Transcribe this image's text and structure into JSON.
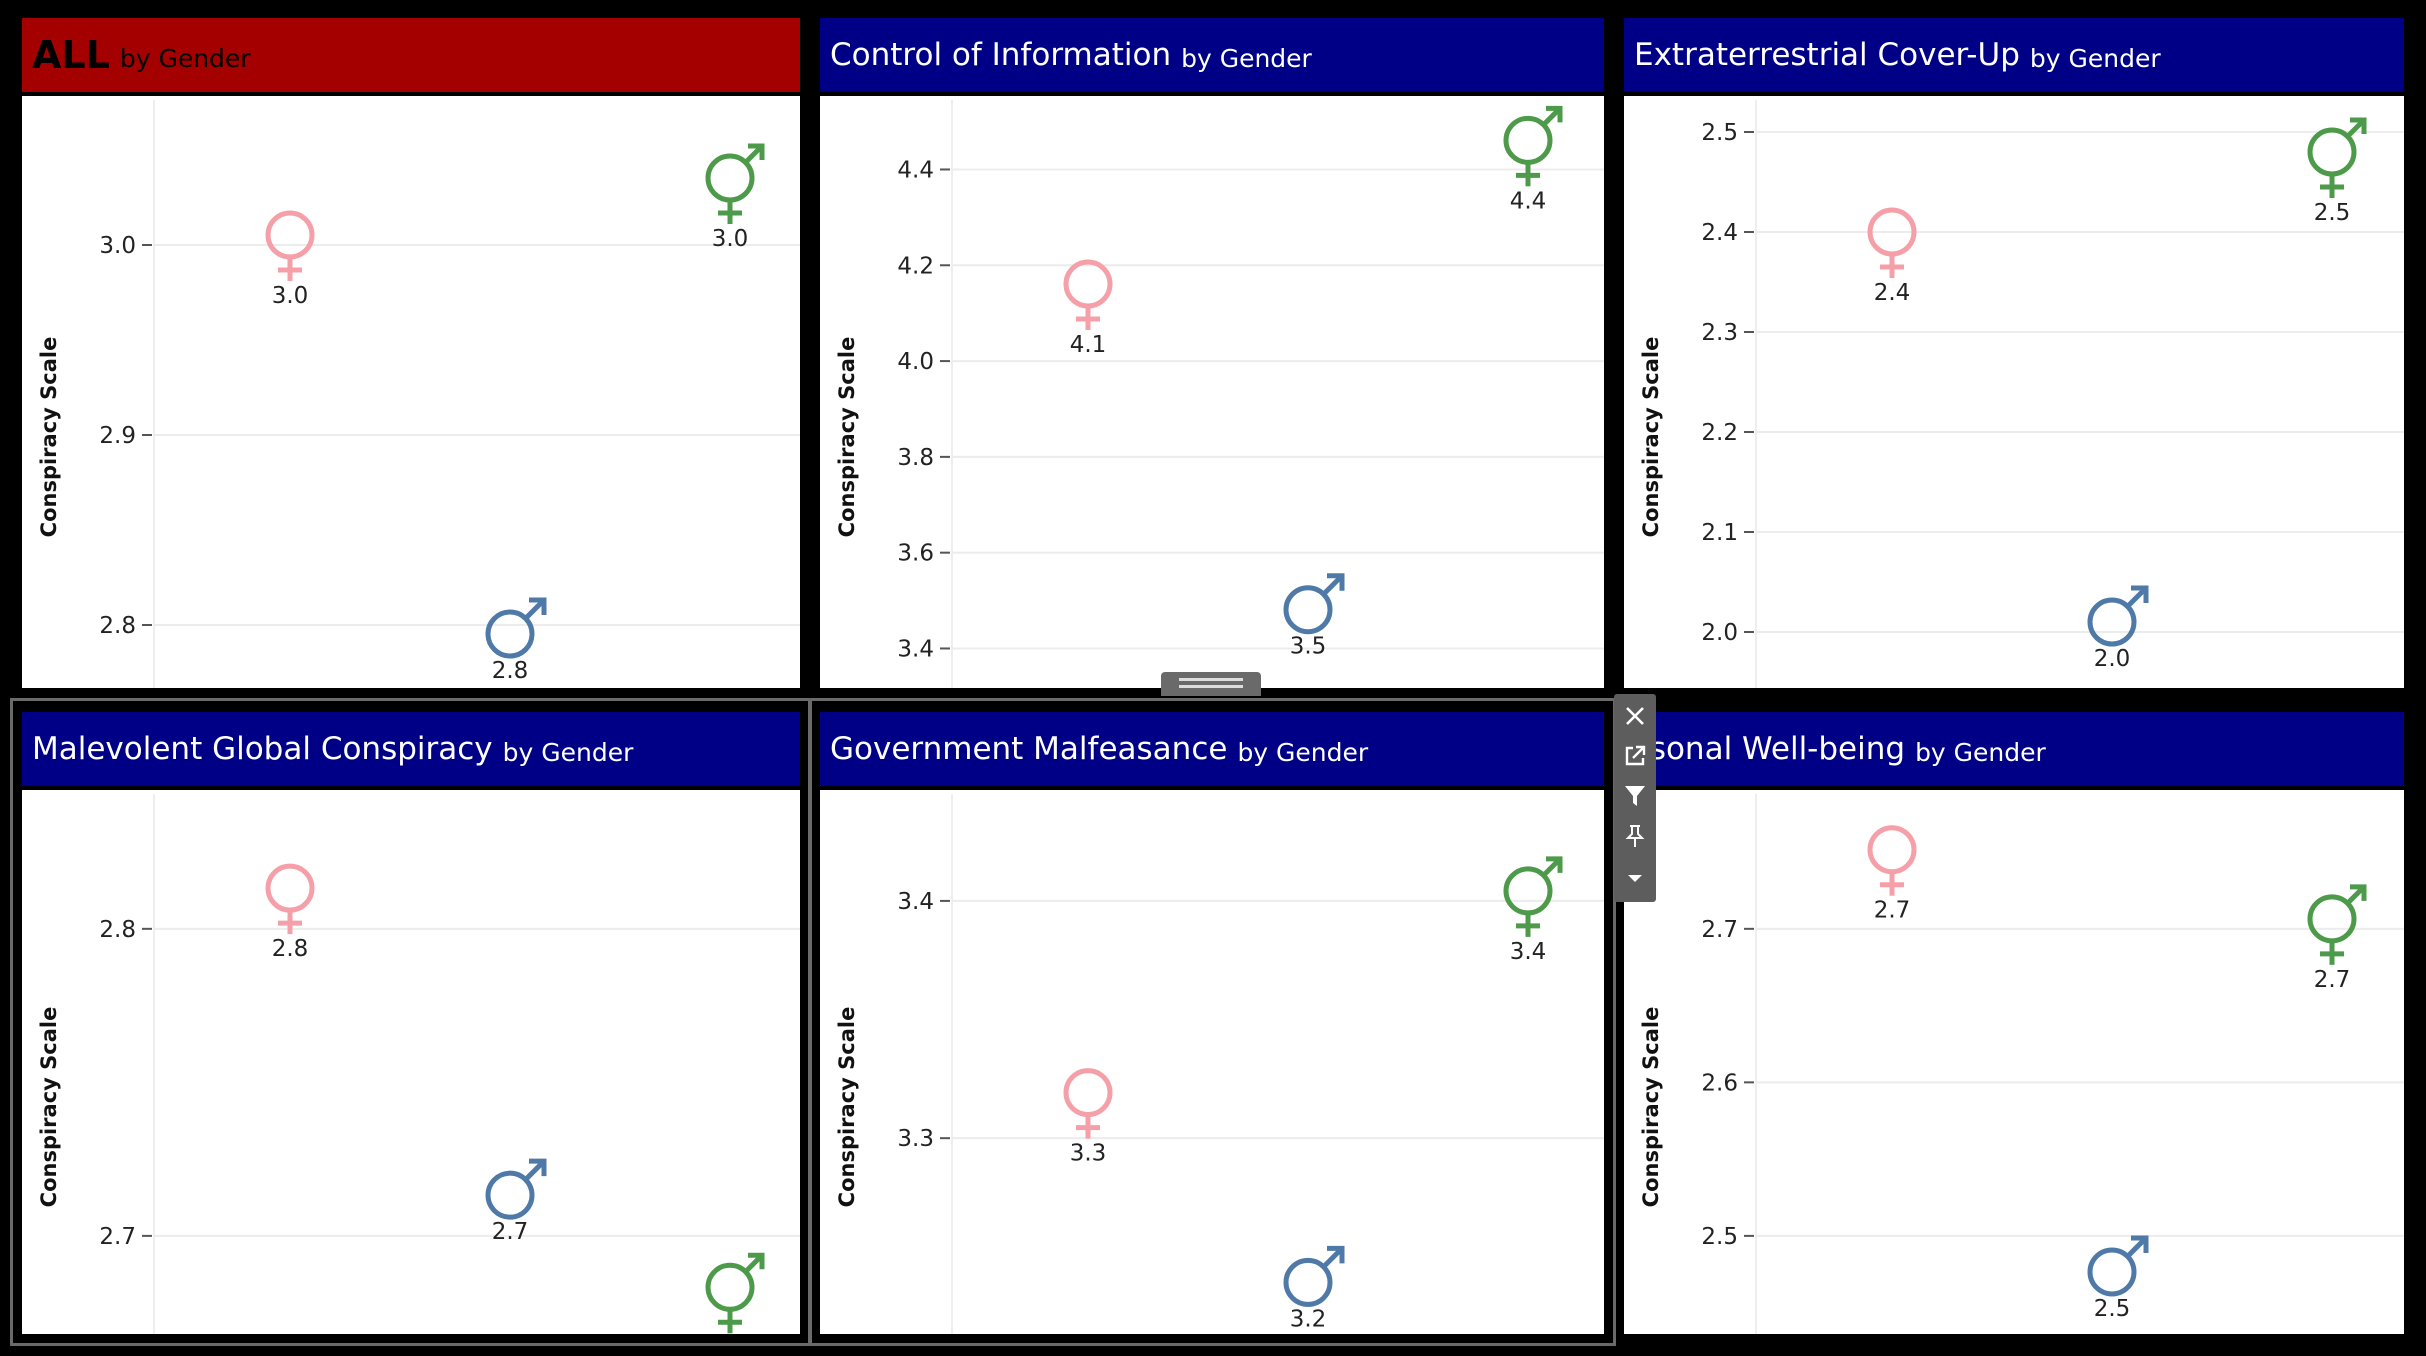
{
  "colors": {
    "female": "#f5a0a8",
    "male": "#4f7aa8",
    "other": "#4d9a4a",
    "header_all": "#a50000",
    "header": "#000087"
  },
  "axis_title": "Conspiracy Scale",
  "panels": [
    {
      "title": "ALL",
      "subtitle": "by Gender",
      "ticks": [
        "3.0",
        "2.9",
        "2.8"
      ],
      "labels": {
        "female": "3.0",
        "male": "2.8",
        "other": "3.0"
      }
    },
    {
      "title": "Control of Information",
      "subtitle": "by Gender",
      "ticks": [
        "4.4",
        "4.2",
        "4.0",
        "3.8",
        "3.6",
        "3.4"
      ],
      "labels": {
        "female": "4.1",
        "male": "3.5",
        "other": "4.4"
      }
    },
    {
      "title": "Extraterrestrial Cover-Up",
      "subtitle": "by Gender",
      "ticks": [
        "2.5",
        "2.4",
        "2.3",
        "2.2",
        "2.1",
        "2.0"
      ],
      "labels": {
        "female": "2.4",
        "male": "2.0",
        "other": "2.5"
      }
    },
    {
      "title": "Malevolent Global Conspiracy",
      "subtitle": "by Gender",
      "ticks": [
        "2.8",
        "2.7"
      ],
      "labels": {
        "female": "2.8",
        "male": "2.7",
        "other": "2.7"
      }
    },
    {
      "title": "Government Malfeasance",
      "subtitle": "by Gender",
      "ticks": [
        "3.4",
        "3.3"
      ],
      "labels": {
        "female": "3.3",
        "male": "3.2",
        "other": "3.4"
      }
    },
    {
      "title": "ersonal Well-being",
      "subtitle": "by Gender",
      "ticks": [
        "2.7",
        "2.6",
        "2.5"
      ],
      "labels": {
        "female": "2.7",
        "male": "2.5",
        "other": "2.7"
      }
    }
  ],
  "chart_data": [
    {
      "type": "scatter",
      "title": "ALL by Gender",
      "ylabel": "Conspiracy Scale",
      "categories": [
        "Female",
        "Male",
        "Other"
      ],
      "values": [
        3.0,
        2.79,
        3.03
      ],
      "ylim": [
        2.77,
        3.07
      ],
      "yticks": [
        3.0,
        2.9,
        2.8
      ],
      "grid": true
    },
    {
      "type": "scatter",
      "title": "Control of Information by Gender",
      "ylabel": "Conspiracy Scale",
      "categories": [
        "Female",
        "Male",
        "Other"
      ],
      "values": [
        4.14,
        3.46,
        4.44
      ],
      "ylim": [
        3.33,
        4.52
      ],
      "yticks": [
        4.4,
        4.2,
        4.0,
        3.8,
        3.6,
        3.4
      ],
      "grid": true
    },
    {
      "type": "scatter",
      "title": "Extraterrestrial Cover-Up by Gender",
      "ylabel": "Conspiracy Scale",
      "categories": [
        "Female",
        "Male",
        "Other"
      ],
      "values": [
        2.39,
        2.0,
        2.47
      ],
      "ylim": [
        1.95,
        2.52
      ],
      "yticks": [
        2.5,
        2.4,
        2.3,
        2.2,
        2.1,
        2.0
      ],
      "grid": true
    },
    {
      "type": "scatter",
      "title": "Malevolent Global Conspiracy by Gender",
      "ylabel": "Conspiracy Scale",
      "categories": [
        "Female",
        "Male",
        "Other"
      ],
      "values": [
        2.81,
        2.71,
        2.68
      ],
      "ylim": [
        2.67,
        2.84
      ],
      "yticks": [
        2.8,
        2.7
      ],
      "grid": true
    },
    {
      "type": "scatter",
      "title": "Government Malfeasance by Gender",
      "ylabel": "Conspiracy Scale",
      "categories": [
        "Female",
        "Male",
        "Other"
      ],
      "values": [
        3.315,
        3.235,
        3.4
      ],
      "ylim": [
        3.22,
        3.44
      ],
      "yticks": [
        3.4,
        3.3
      ],
      "grid": true
    },
    {
      "type": "scatter",
      "title": "ersonal Well-being by Gender",
      "ylabel": "Conspiracy Scale",
      "categories": [
        "Female",
        "Male",
        "Other"
      ],
      "values": [
        2.745,
        2.47,
        2.7
      ],
      "ylim": [
        2.44,
        2.78
      ],
      "yticks": [
        2.7,
        2.6,
        2.5
      ],
      "grid": true
    }
  ],
  "toolbar": {
    "icons": [
      "close-icon",
      "open-external-icon",
      "filter-icon",
      "pin-icon",
      "dropdown-arrow-icon"
    ]
  }
}
